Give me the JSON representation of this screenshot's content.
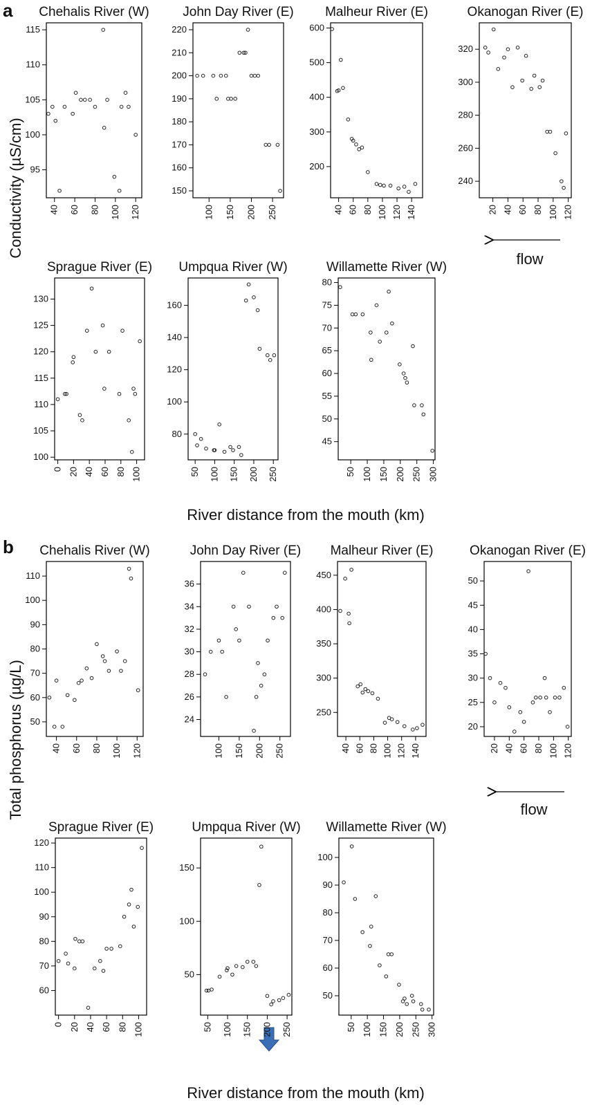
{
  "figure": {
    "panel_a_label": "a",
    "panel_b_label": "b",
    "a_ylabel": "Conductivity (µS/cm)",
    "a_xlabel": "River distance from the mouth (km)",
    "b_ylabel": "Total phosphorus (µg/L)",
    "b_xlabel": "River distance from the mouth (km)",
    "flow_label": "flow",
    "arrow_color": "#3a6fb5"
  },
  "chart_data": [
    {
      "type": "scatter",
      "section": "a",
      "title": "Chehalis River (W)",
      "xticks": [
        40,
        60,
        80,
        100,
        120
      ],
      "yticks": [
        95,
        100,
        105,
        110,
        115
      ],
      "xlim": [
        32,
        126
      ],
      "ylim": [
        91,
        116
      ],
      "points": [
        [
          34,
          103
        ],
        [
          38,
          104
        ],
        [
          41,
          102
        ],
        [
          45,
          92
        ],
        [
          50,
          104
        ],
        [
          58,
          103
        ],
        [
          61,
          106
        ],
        [
          66,
          105
        ],
        [
          70,
          105
        ],
        [
          75,
          105
        ],
        [
          80,
          104
        ],
        [
          88,
          115
        ],
        [
          89,
          101
        ],
        [
          92,
          105
        ],
        [
          99,
          94
        ],
        [
          104,
          92
        ],
        [
          106,
          104
        ],
        [
          110,
          106
        ],
        [
          113,
          104
        ],
        [
          120,
          100
        ]
      ]
    },
    {
      "type": "scatter",
      "section": "a",
      "title": "John Day River (E)",
      "xticks": [
        100,
        150,
        200,
        250
      ],
      "yticks": [
        150,
        160,
        170,
        180,
        190,
        200,
        210,
        220
      ],
      "xlim": [
        62,
        276
      ],
      "ylim": [
        147,
        223
      ],
      "points": [
        [
          72,
          200
        ],
        [
          86,
          200
        ],
        [
          110,
          200
        ],
        [
          118,
          190
        ],
        [
          128,
          200
        ],
        [
          140,
          200
        ],
        [
          145,
          190
        ],
        [
          152,
          190
        ],
        [
          162,
          190
        ],
        [
          172,
          210
        ],
        [
          182,
          210
        ],
        [
          186,
          210
        ],
        [
          192,
          220
        ],
        [
          200,
          200
        ],
        [
          208,
          200
        ],
        [
          216,
          200
        ],
        [
          234,
          170
        ],
        [
          242,
          170
        ],
        [
          262,
          170
        ],
        [
          268,
          150
        ]
      ]
    },
    {
      "type": "scatter",
      "section": "a",
      "title": "Malheur River (E)",
      "xticks": [
        40,
        60,
        80,
        100,
        120,
        140
      ],
      "yticks": [
        200,
        300,
        400,
        500,
        600
      ],
      "xlim": [
        29,
        155
      ],
      "ylim": [
        110,
        615
      ],
      "points": [
        [
          31,
          597
        ],
        [
          38,
          418
        ],
        [
          40,
          420
        ],
        [
          43,
          508
        ],
        [
          46,
          427
        ],
        [
          53,
          336
        ],
        [
          58,
          280
        ],
        [
          60,
          275
        ],
        [
          64,
          264
        ],
        [
          68,
          250
        ],
        [
          72,
          255
        ],
        [
          80,
          184
        ],
        [
          92,
          150
        ],
        [
          97,
          147
        ],
        [
          102,
          145
        ],
        [
          111,
          145
        ],
        [
          122,
          137
        ],
        [
          130,
          142
        ],
        [
          136,
          127
        ],
        [
          145,
          150
        ]
      ]
    },
    {
      "type": "scatter",
      "section": "a",
      "title": "Okanogan River (E)",
      "xticks": [
        20,
        40,
        60,
        80,
        100,
        120
      ],
      "yticks": [
        240,
        260,
        280,
        300,
        320
      ],
      "xlim": [
        2,
        124
      ],
      "ylim": [
        230,
        336
      ],
      "points": [
        [
          10,
          321
        ],
        [
          14,
          318
        ],
        [
          21,
          332
        ],
        [
          27,
          308
        ],
        [
          35,
          315
        ],
        [
          40,
          320
        ],
        [
          46,
          297
        ],
        [
          53,
          321
        ],
        [
          59,
          301
        ],
        [
          64,
          316
        ],
        [
          71,
          296
        ],
        [
          75,
          304
        ],
        [
          82,
          297
        ],
        [
          86,
          301
        ],
        [
          92,
          270
        ],
        [
          96,
          270
        ],
        [
          103,
          257
        ],
        [
          111,
          240
        ],
        [
          114,
          236
        ],
        [
          117,
          269
        ]
      ]
    },
    {
      "type": "scatter",
      "section": "a",
      "title": "Sprague River (E)",
      "xticks": [
        0,
        20,
        40,
        60,
        80,
        100
      ],
      "yticks": [
        100,
        105,
        110,
        115,
        120,
        125,
        130
      ],
      "xlim": [
        -4,
        110
      ],
      "ylim": [
        99.5,
        134
      ],
      "points": [
        [
          0,
          111
        ],
        [
          9,
          112
        ],
        [
          11,
          112
        ],
        [
          19,
          118
        ],
        [
          20,
          119
        ],
        [
          28,
          108
        ],
        [
          31,
          107
        ],
        [
          37,
          124
        ],
        [
          43,
          132
        ],
        [
          48,
          120
        ],
        [
          57,
          125
        ],
        [
          59,
          113
        ],
        [
          65,
          120
        ],
        [
          78,
          112
        ],
        [
          82,
          124
        ],
        [
          90,
          107
        ],
        [
          94,
          101
        ],
        [
          96,
          113
        ],
        [
          98,
          112
        ],
        [
          104,
          122
        ]
      ]
    },
    {
      "type": "scatter",
      "section": "a",
      "title": "Umpqua River (W)",
      "xticks": [
        50,
        100,
        150,
        200,
        250
      ],
      "yticks": [
        80,
        100,
        120,
        140,
        160
      ],
      "xlim": [
        32,
        262
      ],
      "ylim": [
        64,
        177
      ],
      "points": [
        [
          50,
          80
        ],
        [
          55,
          73
        ],
        [
          65,
          77
        ],
        [
          78,
          71
        ],
        [
          98,
          70
        ],
        [
          100,
          70
        ],
        [
          112,
          86
        ],
        [
          125,
          69
        ],
        [
          140,
          72
        ],
        [
          147,
          70
        ],
        [
          162,
          72
        ],
        [
          168,
          67
        ],
        [
          180,
          163
        ],
        [
          187,
          173
        ],
        [
          200,
          165
        ],
        [
          210,
          157
        ],
        [
          215,
          133
        ],
        [
          235,
          129
        ],
        [
          242,
          126
        ],
        [
          252,
          129
        ]
      ]
    },
    {
      "type": "scatter",
      "section": "a",
      "title": "Willamette River (W)",
      "xticks": [
        50,
        100,
        150,
        200,
        250,
        300
      ],
      "yticks": [
        45,
        50,
        55,
        60,
        65,
        70,
        75,
        80
      ],
      "xlim": [
        12,
        305
      ],
      "ylim": [
        41,
        81
      ],
      "points": [
        [
          18,
          79
        ],
        [
          55,
          73
        ],
        [
          65,
          73
        ],
        [
          86,
          73
        ],
        [
          110,
          69
        ],
        [
          112,
          63
        ],
        [
          128,
          75
        ],
        [
          138,
          67
        ],
        [
          158,
          69
        ],
        [
          165,
          78
        ],
        [
          175,
          71
        ],
        [
          198,
          62
        ],
        [
          210,
          60
        ],
        [
          215,
          59
        ],
        [
          220,
          58
        ],
        [
          238,
          66
        ],
        [
          242,
          53
        ],
        [
          265,
          53
        ],
        [
          270,
          51
        ],
        [
          297,
          43
        ]
      ]
    },
    {
      "type": "scatter",
      "section": "b",
      "title": "Chehalis River (W)",
      "xticks": [
        40,
        60,
        80,
        100,
        120
      ],
      "yticks": [
        50,
        60,
        70,
        80,
        90,
        100,
        110
      ],
      "xlim": [
        30,
        126
      ],
      "ylim": [
        44,
        116
      ],
      "points": [
        [
          33,
          60
        ],
        [
          38,
          48
        ],
        [
          40,
          67
        ],
        [
          46,
          48
        ],
        [
          51,
          61
        ],
        [
          58,
          59
        ],
        [
          62,
          66
        ],
        [
          65,
          67
        ],
        [
          70,
          72
        ],
        [
          75,
          68
        ],
        [
          80,
          82
        ],
        [
          86,
          77
        ],
        [
          88,
          75
        ],
        [
          92,
          71
        ],
        [
          100,
          79
        ],
        [
          104,
          71
        ],
        [
          108,
          75
        ],
        [
          112,
          113
        ],
        [
          114,
          109
        ],
        [
          121,
          63
        ]
      ]
    },
    {
      "type": "scatter",
      "section": "b",
      "title": "John Day River (E)",
      "xticks": [
        100,
        150,
        200,
        250
      ],
      "yticks": [
        24,
        26,
        28,
        30,
        32,
        34,
        36
      ],
      "xlim": [
        55,
        276
      ],
      "ylim": [
        22.5,
        38
      ],
      "points": [
        [
          66,
          28
        ],
        [
          80,
          30
        ],
        [
          100,
          31
        ],
        [
          108,
          30
        ],
        [
          118,
          26
        ],
        [
          136,
          34
        ],
        [
          142,
          32
        ],
        [
          150,
          31
        ],
        [
          160,
          37
        ],
        [
          174,
          34
        ],
        [
          186,
          23
        ],
        [
          192,
          26
        ],
        [
          196,
          29
        ],
        [
          204,
          27
        ],
        [
          212,
          28
        ],
        [
          220,
          31
        ],
        [
          234,
          33
        ],
        [
          242,
          34
        ],
        [
          256,
          33
        ],
        [
          262,
          37
        ]
      ]
    },
    {
      "type": "scatter",
      "section": "b",
      "title": "Malheur River (E)",
      "xticks": [
        40,
        60,
        80,
        100,
        120,
        140
      ],
      "yticks": [
        250,
        300,
        350,
        400,
        450
      ],
      "xlim": [
        28,
        155
      ],
      "ylim": [
        215,
        470
      ],
      "points": [
        [
          32,
          398
        ],
        [
          39,
          445
        ],
        [
          44,
          394
        ],
        [
          45,
          380
        ],
        [
          48,
          458
        ],
        [
          57,
          288
        ],
        [
          61,
          291
        ],
        [
          64,
          279
        ],
        [
          68,
          284
        ],
        [
          72,
          281
        ],
        [
          78,
          278
        ],
        [
          86,
          270
        ],
        [
          96,
          235
        ],
        [
          102,
          242
        ],
        [
          106,
          240
        ],
        [
          114,
          236
        ],
        [
          124,
          230
        ],
        [
          136,
          225
        ],
        [
          142,
          227
        ],
        [
          150,
          232
        ]
      ]
    },
    {
      "type": "scatter",
      "section": "b",
      "title": "Okanogan River (E)",
      "xticks": [
        20,
        40,
        60,
        80,
        100,
        120
      ],
      "yticks": [
        20,
        25,
        30,
        35,
        40,
        45,
        50
      ],
      "xlim": [
        6,
        124
      ],
      "ylim": [
        18,
        54
      ],
      "points": [
        [
          8,
          35
        ],
        [
          14,
          30
        ],
        [
          20,
          25
        ],
        [
          28,
          29
        ],
        [
          35,
          28
        ],
        [
          40,
          24
        ],
        [
          47,
          19
        ],
        [
          55,
          23
        ],
        [
          60,
          21
        ],
        [
          66,
          52
        ],
        [
          72,
          25
        ],
        [
          76,
          26
        ],
        [
          82,
          26
        ],
        [
          88,
          30
        ],
        [
          90,
          26
        ],
        [
          95,
          23
        ],
        [
          102,
          26
        ],
        [
          108,
          26
        ],
        [
          114,
          28
        ],
        [
          119,
          20
        ]
      ]
    },
    {
      "type": "scatter",
      "section": "b",
      "title": "Sprague River (E)",
      "xticks": [
        0,
        20,
        40,
        60,
        80,
        100
      ],
      "yticks": [
        60,
        70,
        80,
        90,
        100,
        110,
        120
      ],
      "xlim": [
        -4,
        110
      ],
      "ylim": [
        50,
        122
      ],
      "points": [
        [
          0,
          72
        ],
        [
          9,
          75
        ],
        [
          12,
          71
        ],
        [
          20,
          69
        ],
        [
          21,
          81
        ],
        [
          26,
          80
        ],
        [
          30,
          80
        ],
        [
          37,
          53
        ],
        [
          45,
          69
        ],
        [
          52,
          72
        ],
        [
          56,
          68
        ],
        [
          60,
          77
        ],
        [
          66,
          77
        ],
        [
          77,
          78
        ],
        [
          82,
          90
        ],
        [
          88,
          95
        ],
        [
          91,
          101
        ],
        [
          94,
          86
        ],
        [
          99,
          94
        ],
        [
          104,
          118
        ]
      ]
    },
    {
      "type": "scatter",
      "section": "b",
      "title": "Umpqua River (W)",
      "xticks": [
        50,
        100,
        150,
        200,
        250
      ],
      "yticks": [
        50,
        100,
        150
      ],
      "xlim": [
        32,
        262
      ],
      "ylim": [
        12,
        178
      ],
      "points": [
        [
          47,
          35
        ],
        [
          52,
          35
        ],
        [
          60,
          36
        ],
        [
          80,
          48
        ],
        [
          98,
          54
        ],
        [
          100,
          56
        ],
        [
          112,
          50
        ],
        [
          122,
          58
        ],
        [
          138,
          57
        ],
        [
          150,
          62
        ],
        [
          165,
          62
        ],
        [
          172,
          58
        ],
        [
          180,
          134
        ],
        [
          185,
          170
        ],
        [
          200,
          30
        ],
        [
          210,
          22
        ],
        [
          215,
          25
        ],
        [
          230,
          26
        ],
        [
          240,
          28
        ],
        [
          254,
          31
        ]
      ]
    },
    {
      "type": "scatter",
      "section": "b",
      "title": "Willamette River (W)",
      "xticks": [
        50,
        100,
        150,
        200,
        250,
        300
      ],
      "yticks": [
        50,
        60,
        70,
        80,
        90,
        100
      ],
      "xlim": [
        12,
        305
      ],
      "ylim": [
        43,
        107
      ],
      "points": [
        [
          27,
          91
        ],
        [
          52,
          104
        ],
        [
          62,
          85
        ],
        [
          85,
          73
        ],
        [
          108,
          68
        ],
        [
          112,
          75
        ],
        [
          126,
          86
        ],
        [
          138,
          61
        ],
        [
          158,
          57
        ],
        [
          165,
          65
        ],
        [
          175,
          65
        ],
        [
          198,
          54
        ],
        [
          210,
          48
        ],
        [
          215,
          49
        ],
        [
          222,
          47
        ],
        [
          238,
          50
        ],
        [
          242,
          48
        ],
        [
          266,
          47
        ],
        [
          270,
          45
        ],
        [
          290,
          45
        ]
      ]
    }
  ]
}
